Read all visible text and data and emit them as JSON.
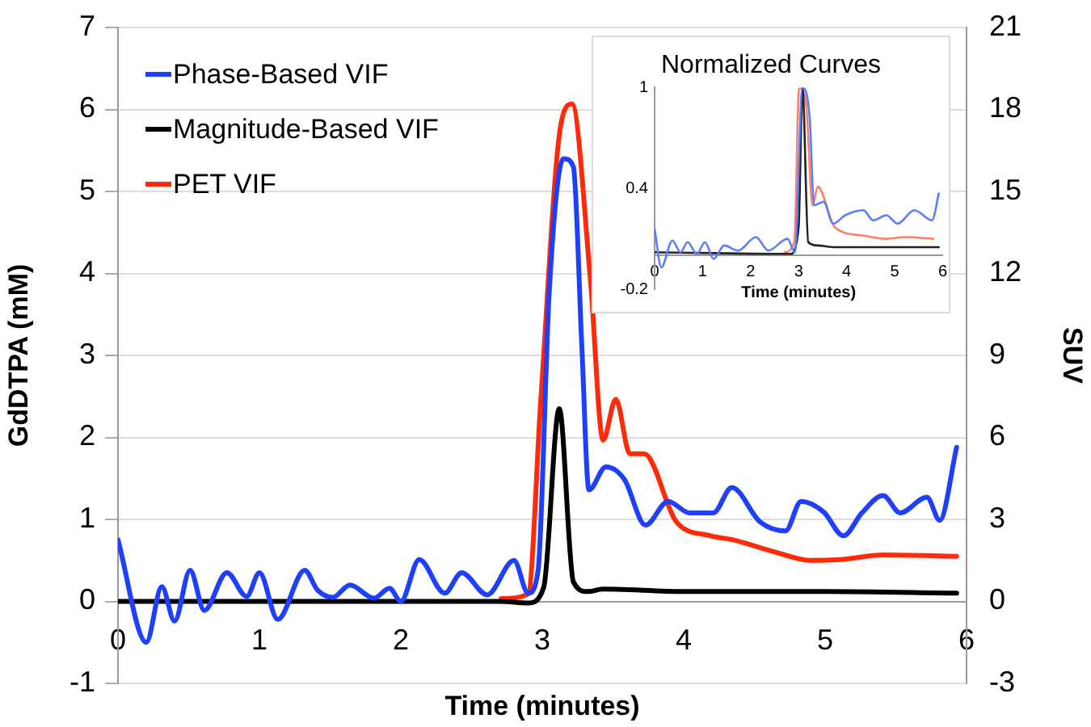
{
  "chart_data": [
    {
      "type": "line",
      "xlabel": "Time (minutes)",
      "ylabel": "GdDTPA (mM)",
      "y2label": "SUV",
      "xlim": [
        0,
        6
      ],
      "xticks": [
        0,
        1,
        2,
        3,
        4,
        5,
        6
      ],
      "ylim": [
        -1,
        7
      ],
      "yticks": [
        -1,
        0,
        1,
        2,
        3,
        4,
        5,
        6,
        7
      ],
      "y2lim": [
        -3,
        21
      ],
      "y2ticks": [
        -3,
        0,
        3,
        6,
        9,
        12,
        15,
        18,
        21
      ],
      "grid": "y",
      "legend": "top left",
      "marker": "none",
      "series": [
        {
          "name": "Phase-Based VIF",
          "color": "#1f3fff",
          "x": [
            0,
            0.2,
            0.31,
            0.4,
            0.51,
            0.61,
            0.77,
            0.91,
            1.0,
            1.13,
            1.32,
            1.41,
            1.52,
            1.64,
            1.81,
            1.92,
            2.0,
            2.13,
            2.31,
            2.43,
            2.61,
            2.8,
            2.9,
            2.97,
            3.05,
            3.15,
            3.22,
            3.28,
            3.33,
            3.45,
            3.58,
            3.73,
            3.89,
            4.04,
            4.21,
            4.34,
            4.54,
            4.72,
            4.83,
            4.99,
            5.13,
            5.26,
            5.41,
            5.53,
            5.72,
            5.81,
            5.93
          ],
          "values": [
            0.75,
            -0.5,
            0.18,
            -0.24,
            0.38,
            -0.11,
            0.35,
            0.06,
            0.35,
            -0.22,
            0.38,
            0.14,
            0.05,
            0.2,
            0.04,
            0.16,
            0.0,
            0.51,
            0.1,
            0.35,
            0.08,
            0.5,
            0.1,
            0.37,
            3.8,
            5.4,
            5.3,
            3.1,
            1.36,
            1.64,
            1.49,
            0.93,
            1.22,
            1.08,
            1.08,
            1.39,
            0.97,
            0.86,
            1.22,
            1.09,
            0.8,
            1.08,
            1.29,
            1.08,
            1.27,
            0.99,
            1.88
          ]
        },
        {
          "name": "Magnitude-Based VIF",
          "color": "#000000",
          "x": [
            0,
            1,
            2,
            2.7,
            2.9,
            3.01,
            3.12,
            3.22,
            3.32,
            3.43,
            4.0,
            5.0,
            5.93
          ],
          "values": [
            0,
            0,
            0,
            0,
            -0.02,
            0.17,
            2.35,
            0.24,
            0.12,
            0.15,
            0.12,
            0.12,
            0.1
          ]
        },
        {
          "name": "PET VIF",
          "color": "#ff2a0a",
          "axis": "y2",
          "x": [
            2.71,
            2.9,
            2.99,
            3.13,
            3.21,
            3.34,
            3.43,
            3.52,
            3.62,
            3.72,
            3.95,
            4.19,
            4.35,
            4.65,
            4.9,
            5.11,
            5.41,
            5.93
          ],
          "values": [
            0.1,
            0.27,
            7.4,
            17.4,
            18.2,
            11.8,
            5.9,
            7.4,
            5.4,
            5.4,
            2.9,
            2.4,
            2.25,
            1.8,
            1.5,
            1.53,
            1.7,
            1.65
          ]
        }
      ]
    },
    {
      "type": "line",
      "title": "Normalized Curves",
      "xlabel": "Time (minutes)",
      "xlim": [
        0,
        6
      ],
      "xticks": [
        0,
        1,
        2,
        3,
        4,
        5,
        6
      ],
      "ylim": [
        -0.2,
        1
      ],
      "yticks": [
        -0.2,
        0.4,
        1
      ],
      "marker": "none",
      "series": [
        {
          "color": "#5a7dff",
          "x": [
            0,
            0.14,
            0.37,
            0.54,
            0.69,
            0.88,
            1.05,
            1.23,
            1.45,
            1.74,
            2.11,
            2.37,
            2.77,
            2.92,
            3.08,
            3.23,
            3.32,
            3.52,
            3.72,
            3.97,
            4.35,
            4.55,
            4.83,
            5.06,
            5.41,
            5.78,
            5.92
          ],
          "values": [
            0.16,
            -0.07,
            0.09,
            0.02,
            0.08,
            0.01,
            0.08,
            -0.02,
            0.06,
            0.03,
            0.11,
            0.03,
            0.1,
            0.02,
            1.0,
            0.82,
            0.3,
            0.32,
            0.19,
            0.24,
            0.27,
            0.21,
            0.24,
            0.19,
            0.27,
            0.21,
            0.37
          ]
        },
        {
          "color": "#222222",
          "x": [
            0,
            2.83,
            3.0,
            3.08,
            3.2,
            3.4,
            3.75,
            5.92
          ],
          "values": [
            0.02,
            0.01,
            0.17,
            1.0,
            0.08,
            0.06,
            0.05,
            0.05
          ]
        },
        {
          "color": "#ff7f66",
          "x": [
            2.71,
            2.91,
            3.01,
            3.15,
            3.29,
            3.4,
            3.75,
            4.32,
            4.83,
            5.23,
            5.81
          ],
          "values": [
            0.02,
            0.08,
            1.0,
            0.92,
            0.3,
            0.41,
            0.17,
            0.12,
            0.1,
            0.11,
            0.1
          ]
        }
      ]
    }
  ]
}
